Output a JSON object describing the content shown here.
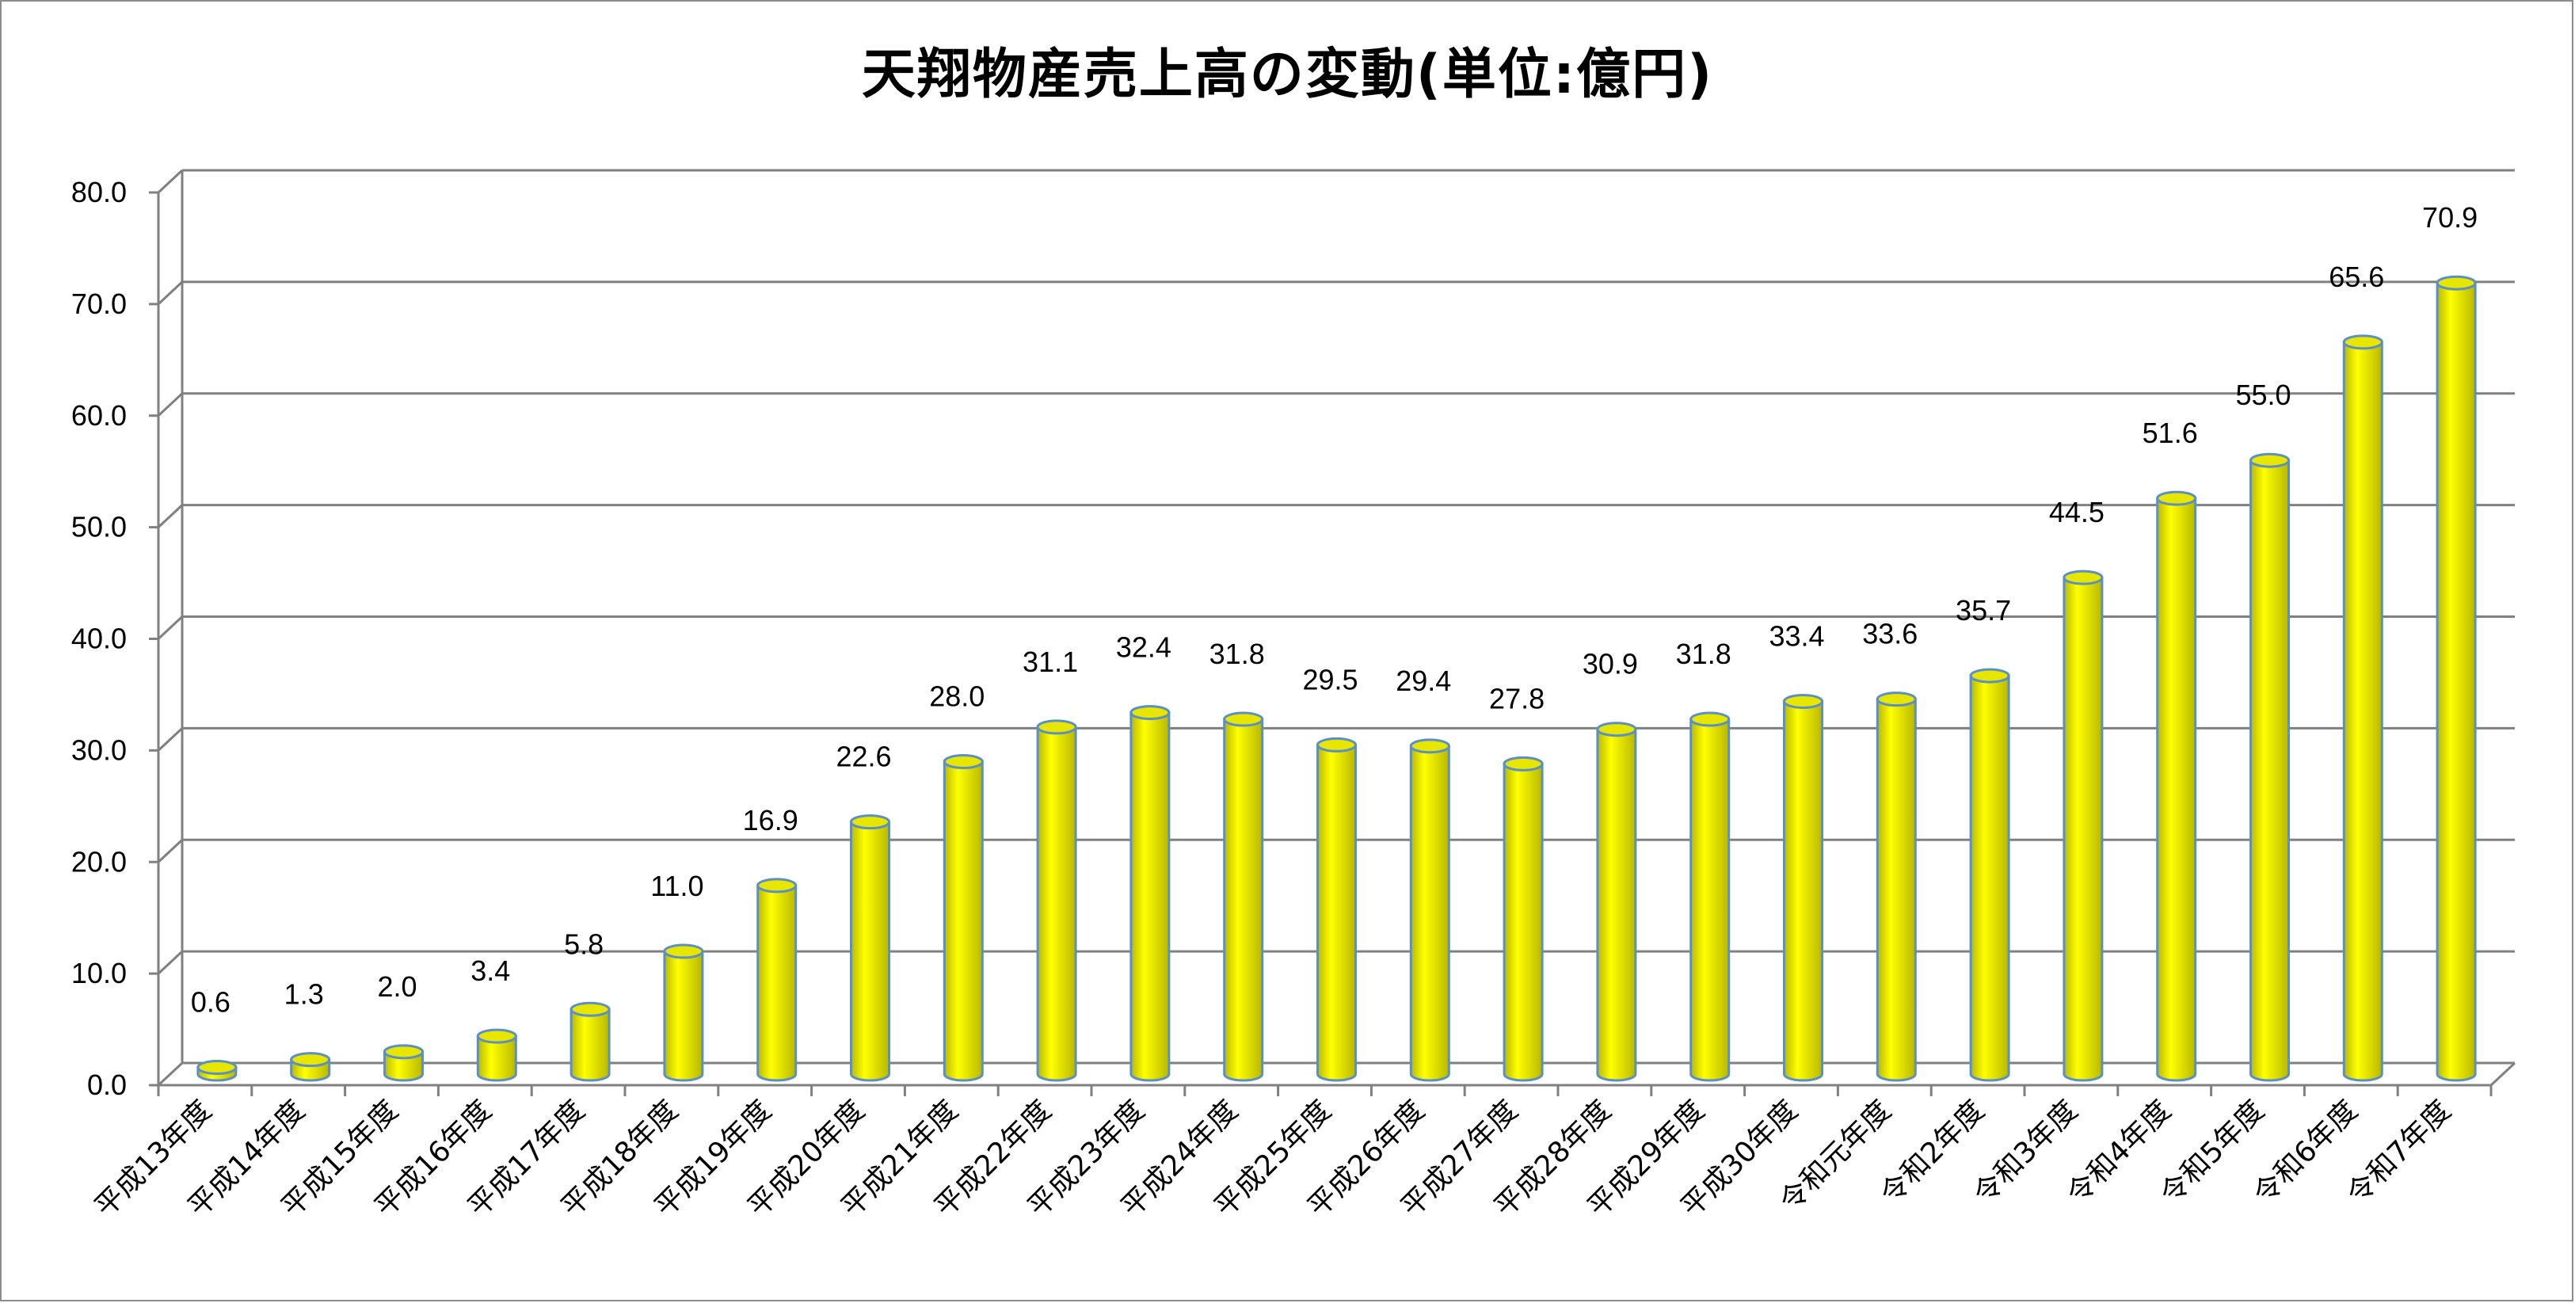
{
  "chart_data": {
    "type": "bar",
    "title": "天翔物産売上高の変動(単位:億円)",
    "xlabel": "",
    "ylabel": "",
    "ylim": [
      0,
      80
    ],
    "yticks": [
      "0.0",
      "10.0",
      "20.0",
      "30.0",
      "40.0",
      "50.0",
      "60.0",
      "70.0",
      "80.0"
    ],
    "grid": true,
    "legend": "none",
    "categories": [
      "平成13年度",
      "平成14年度",
      "平成15年度",
      "平成16年度",
      "平成17年度",
      "平成18年度",
      "平成19年度",
      "平成20年度",
      "平成21年度",
      "平成22年度",
      "平成23年度",
      "平成24年度",
      "平成25年度",
      "平成26年度",
      "平成27年度",
      "平成28年度",
      "平成29年度",
      "平成30年度",
      "令和元年度",
      "令和2年度",
      "令和3年度",
      "令和4年度",
      "令和5年度",
      "令和6年度",
      "令和7年度"
    ],
    "values": [
      0.6,
      1.3,
      2.0,
      3.4,
      5.8,
      11.0,
      16.9,
      22.6,
      28.0,
      31.1,
      32.4,
      31.8,
      29.5,
      29.4,
      27.8,
      30.9,
      31.8,
      33.4,
      33.6,
      35.7,
      44.5,
      51.6,
      55.0,
      65.6,
      70.9
    ],
    "data_labels": [
      "0.6",
      "1.3",
      "2.0",
      "3.4",
      "5.8",
      "11.0",
      "16.9",
      "22.6",
      "28.0",
      "31.1",
      "32.4",
      "31.8",
      "29.5",
      "29.4",
      "27.8",
      "30.9",
      "31.8",
      "33.4",
      "33.6",
      "35.7",
      "44.5",
      "51.6",
      "55.0",
      "65.6",
      "70.9"
    ],
    "colors": {
      "bar_body": "#ffff00",
      "bar_shade": "#b8b800",
      "bar_outline": "#5b8fc7",
      "gridline": "#808080"
    }
  }
}
